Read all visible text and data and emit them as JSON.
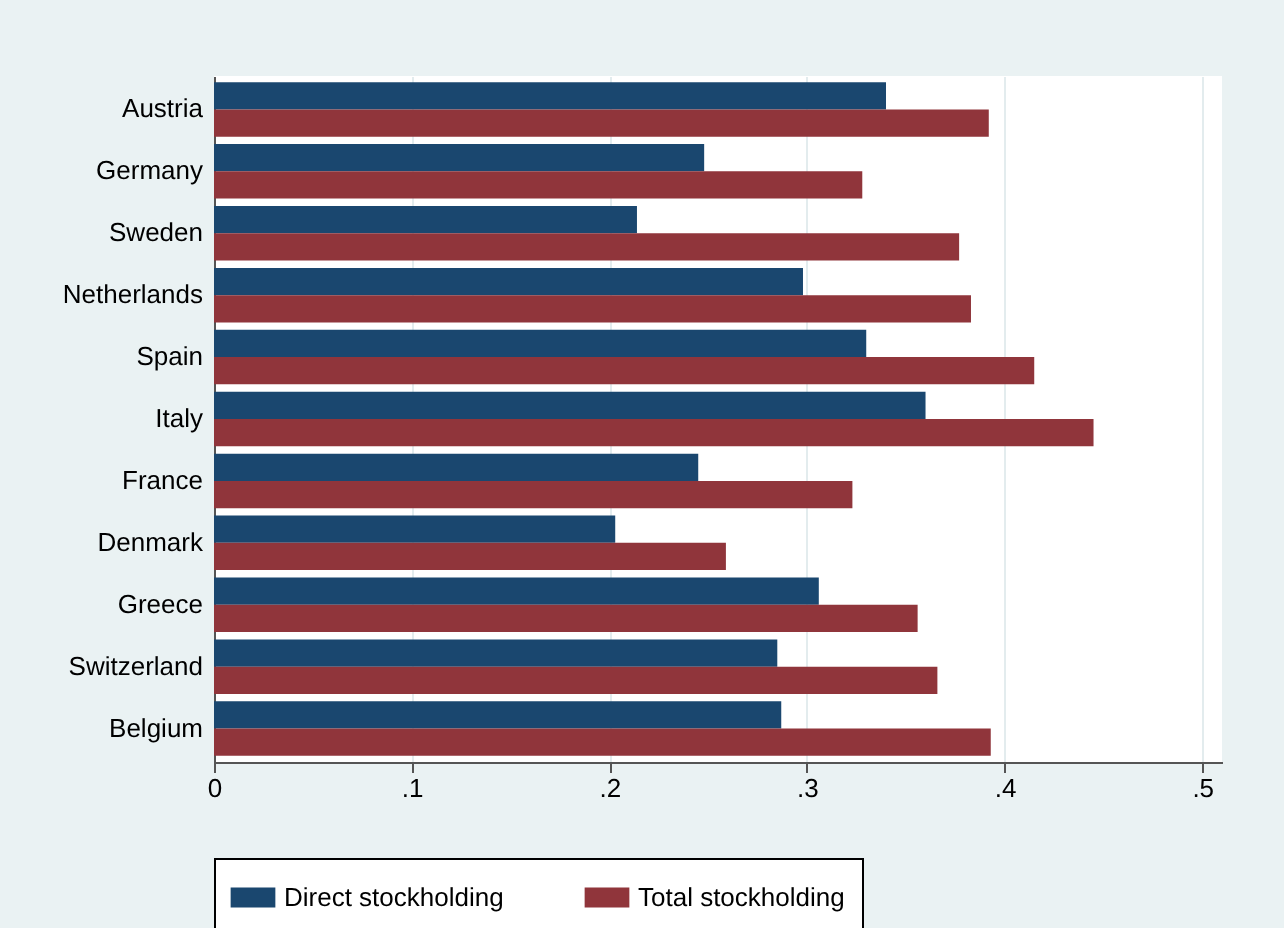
{
  "chart_data": {
    "type": "bar",
    "orientation": "horizontal",
    "categories": [
      "Austria",
      "Germany",
      "Sweden",
      "Netherlands",
      "Spain",
      "Italy",
      "France",
      "Denmark",
      "Greece",
      "Switzerland",
      "Belgium"
    ],
    "series": [
      {
        "name": "Direct stockholding",
        "color": "#1a476f",
        "values": [
          0.34,
          0.248,
          0.214,
          0.298,
          0.33,
          0.36,
          0.245,
          0.203,
          0.306,
          0.285,
          0.287
        ]
      },
      {
        "name": "Total stockholding",
        "color": "#90353b",
        "values": [
          0.392,
          0.328,
          0.377,
          0.383,
          0.415,
          0.445,
          0.323,
          0.259,
          0.356,
          0.366,
          0.393
        ]
      }
    ],
    "xlim": [
      0,
      0.51
    ],
    "xticks": [
      0,
      {
        "value": 0.1,
        "label": ".1"
      },
      {
        "value": 0.2,
        "label": ".2"
      },
      {
        "value": 0.3,
        "label": ".3"
      },
      {
        "value": 0.4,
        "label": ".4"
      },
      {
        "value": 0.5,
        "label": ".5"
      }
    ],
    "grid": "x",
    "legend": "bottom"
  }
}
